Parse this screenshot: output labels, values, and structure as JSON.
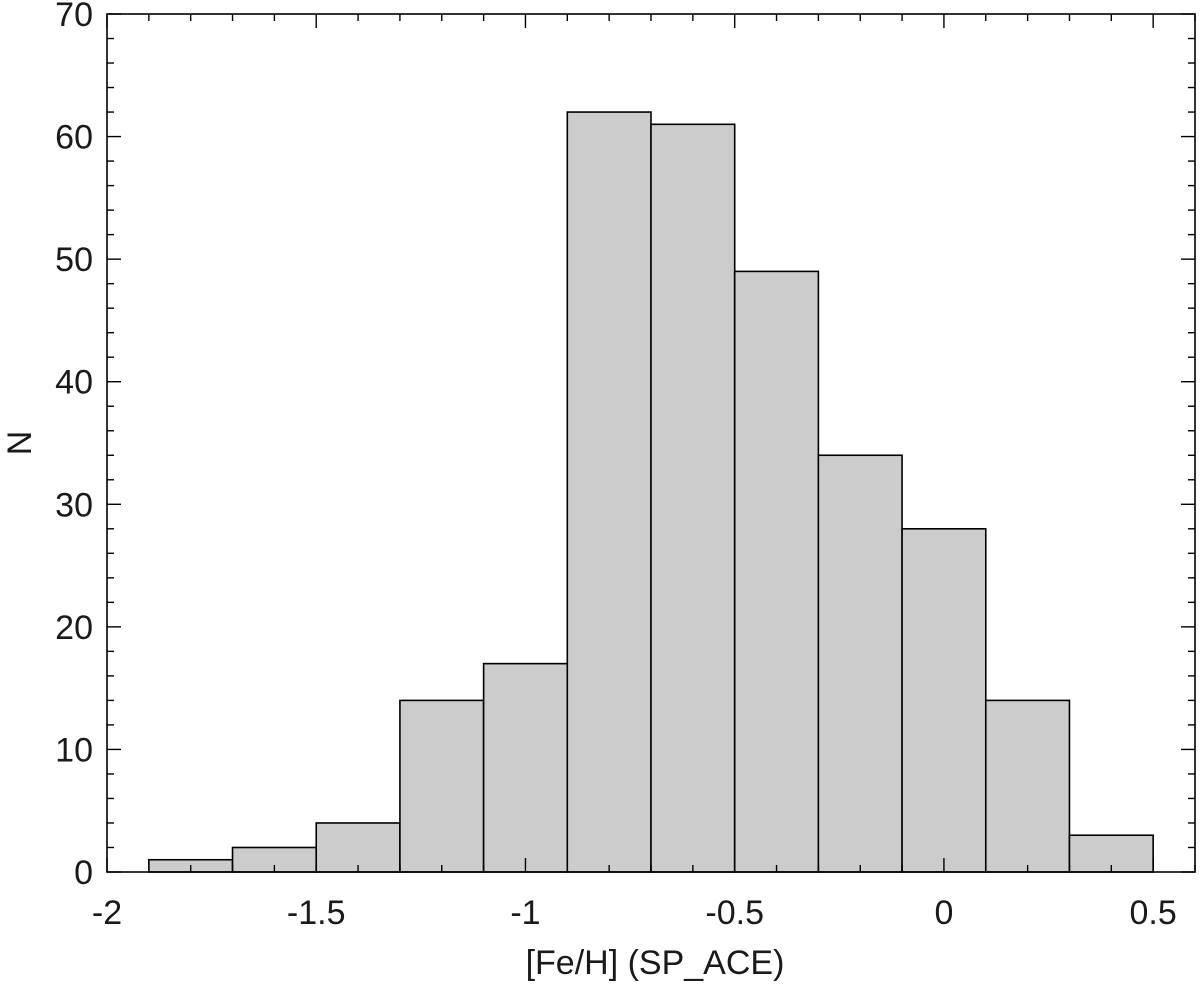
{
  "chart_data": {
    "type": "bar",
    "title": "",
    "xlabel": "[Fe/H] (SP_ACE)",
    "ylabel": "N",
    "xlim": [
      -2,
      0.6
    ],
    "ylim": [
      0,
      70
    ],
    "x_ticks": [
      -2,
      -1.5,
      -1,
      -0.5,
      0,
      0.5
    ],
    "x_tick_labels": [
      "-2",
      "-1.5",
      "-1",
      "-0.5",
      "0",
      "0.5"
    ],
    "y_ticks": [
      0,
      10,
      20,
      30,
      40,
      50,
      60,
      70
    ],
    "y_tick_labels": [
      "0",
      "10",
      "20",
      "30",
      "40",
      "50",
      "60",
      "70"
    ],
    "bin_edges": [
      -1.9,
      -1.7,
      -1.5,
      -1.3,
      -1.1,
      -0.9,
      -0.7,
      -0.5,
      -0.3,
      -0.1,
      0.1,
      0.3,
      0.5
    ],
    "values": [
      1,
      2,
      4,
      14,
      17,
      62,
      61,
      49,
      34,
      28,
      14,
      3
    ],
    "bar_color": "#cccccc",
    "edge_color": "#000000",
    "grid": false,
    "legend": "none"
  }
}
